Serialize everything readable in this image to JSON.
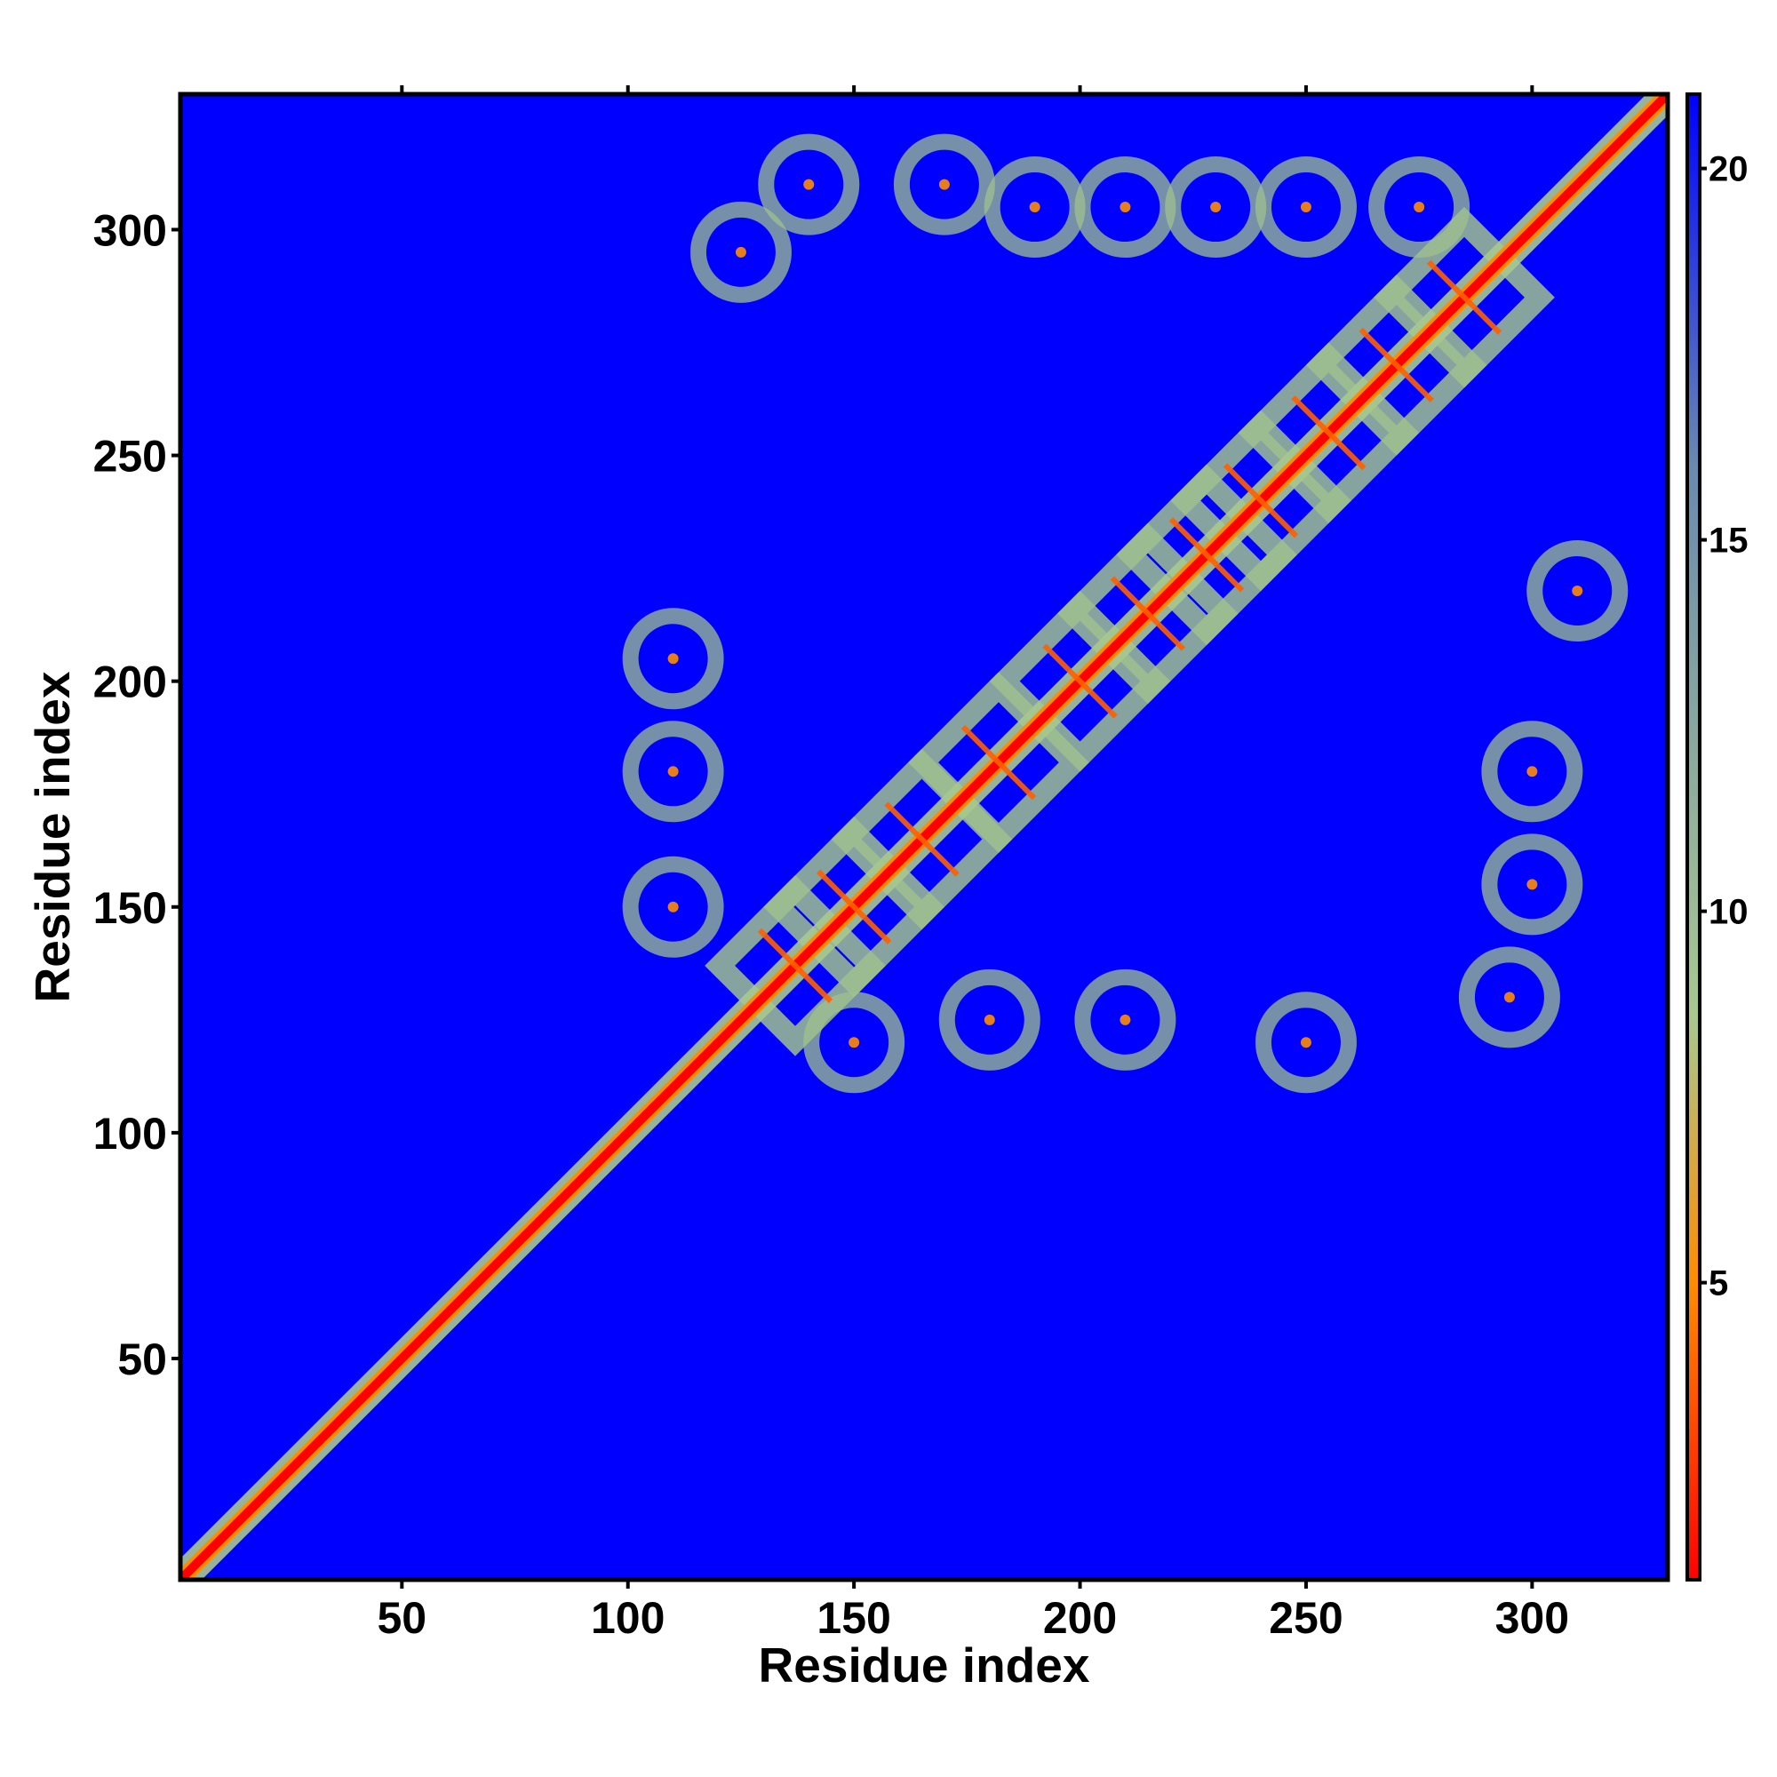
{
  "chart_data": {
    "type": "heatmap",
    "title": "",
    "xlabel": "Residue index",
    "ylabel": "Residue index",
    "xlim": [
      1,
      330
    ],
    "ylim": [
      1,
      330
    ],
    "x_ticks": [
      50,
      100,
      150,
      200,
      250,
      300
    ],
    "y_ticks": [
      50,
      100,
      150,
      200,
      250,
      300
    ],
    "colorbar": {
      "ticks": [
        5,
        10,
        15,
        20
      ],
      "range": [
        1,
        21
      ],
      "colors": [
        "#ff0000",
        "#ff8c00",
        "#a8c890",
        "#6a8ab0",
        "#0000ff"
      ]
    },
    "diagonal": {
      "from": 1,
      "to": 330,
      "value": 1
    },
    "helix_crossing_centers": [
      [
        137,
        137
      ],
      [
        150,
        150
      ],
      [
        165,
        165
      ],
      [
        182,
        182
      ],
      [
        200,
        200
      ],
      [
        215,
        215
      ],
      [
        228,
        228
      ],
      [
        240,
        240
      ],
      [
        255,
        255
      ],
      [
        270,
        270
      ],
      [
        285,
        285
      ]
    ],
    "off_diagonal_contact_centers": [
      [
        125,
        295
      ],
      [
        140,
        310
      ],
      [
        170,
        310
      ],
      [
        190,
        305
      ],
      [
        210,
        305
      ],
      [
        230,
        305
      ],
      [
        250,
        305
      ],
      [
        275,
        305
      ],
      [
        295,
        130
      ],
      [
        300,
        180
      ],
      [
        310,
        220
      ],
      [
        300,
        155
      ],
      [
        250,
        120
      ],
      [
        210,
        125
      ],
      [
        180,
        125
      ],
      [
        150,
        120
      ],
      [
        110,
        150
      ],
      [
        110,
        180
      ],
      [
        110,
        205
      ]
    ],
    "background_value": 21
  }
}
